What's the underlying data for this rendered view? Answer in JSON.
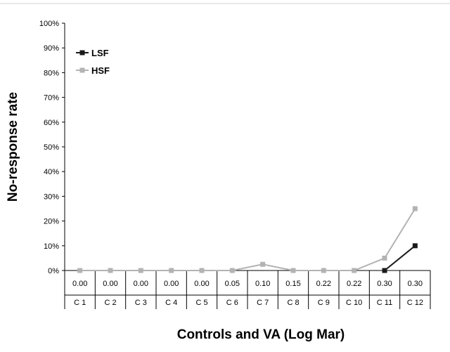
{
  "chart_data": {
    "type": "line",
    "title": "",
    "xlabel": "Controls and VA (Log Mar)",
    "ylabel": "No-response rate",
    "ylim": [
      0,
      100
    ],
    "yticks": [
      "0%",
      "10%",
      "20%",
      "30%",
      "40%",
      "50%",
      "60%",
      "70%",
      "80%",
      "90%",
      "100%"
    ],
    "categories": [
      "C 1",
      "C 2",
      "C 3",
      "C 4",
      "C 5",
      "C 6",
      "C 7",
      "C 8",
      "C 9",
      "C 10",
      "C 11",
      "C 12"
    ],
    "va_values": [
      "0.00",
      "0.00",
      "0.00",
      "0.00",
      "0.00",
      "0.05",
      "0.10",
      "0.15",
      "0.22",
      "0.22",
      "0.30",
      "0.30"
    ],
    "legend_position": "top-left",
    "grid": false,
    "series": [
      {
        "name": "LSF",
        "color": "#1a1a1a",
        "values": [
          null,
          null,
          null,
          null,
          null,
          null,
          null,
          null,
          null,
          null,
          0,
          10
        ]
      },
      {
        "name": "HSF",
        "color": "#b3b3b3",
        "values": [
          0,
          0,
          0,
          0,
          0,
          0,
          2.5,
          0,
          0,
          0,
          5,
          25
        ]
      }
    ]
  }
}
